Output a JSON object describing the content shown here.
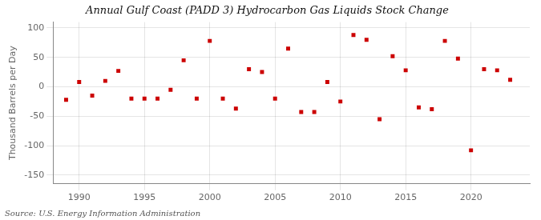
{
  "chart_data": {
    "type": "scatter",
    "title": "Annual Gulf Coast (PADD 3) Hydrocarbon Gas Liquids Stock Change",
    "ylabel": "Thousand Barrels per Day",
    "annotations": [
      "Source: U.S. Energy Information Administration"
    ],
    "x": [
      1989,
      1990,
      1991,
      1992,
      1993,
      1994,
      1995,
      1996,
      1997,
      1998,
      1999,
      2000,
      2001,
      2002,
      2003,
      2004,
      2005,
      2006,
      2007,
      2008,
      2009,
      2010,
      2011,
      2012,
      2013,
      2014,
      2015,
      2016,
      2017,
      2018,
      2019,
      2020,
      2021,
      2022,
      2023
    ],
    "values": [
      -22,
      8,
      -15,
      10,
      27,
      -20,
      -20,
      -20,
      -5,
      45,
      -20,
      78,
      -20,
      -37,
      30,
      25,
      -20,
      65,
      -43,
      -43,
      8,
      -25,
      88,
      80,
      -55,
      52,
      28,
      -35,
      -38,
      78,
      48,
      -108,
      30,
      28,
      12
    ],
    "color": "#cc0000",
    "marker": "square",
    "xlim": [
      1988.0,
      2024.5
    ],
    "xticks": [
      1990,
      1995,
      2000,
      2005,
      2010,
      2015,
      2020
    ],
    "ylim": [
      -165,
      110
    ],
    "yticks": [
      -150,
      -100,
      -50,
      0,
      50,
      100
    ],
    "grid": true
  }
}
